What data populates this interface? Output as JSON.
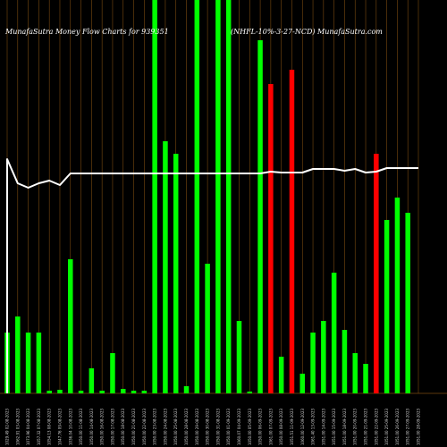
{
  "header": {
    "title_left": "MunafaSutra  Money Flow  Charts for 939351",
    "title_right": "(NHFL-10%-3-27-NCD) MunafaSutra.com"
  },
  "colors": {
    "background": "#000000",
    "grid": "#7a4a10",
    "up": "#00ff00",
    "down": "#ff0000",
    "line": "#ffffff"
  },
  "chart_data": {
    "type": "bar",
    "ylim": [
      0,
      440
    ],
    "line_ylim": [
      0,
      440
    ],
    "grid": true,
    "categories": [
      "1029.49 02-08-2023",
      "1062.91 03-08-2023",
      "1073.96 04-08-2023",
      "1057.32 07-08-2023",
      "1054.13 08-08-2023",
      "1047.76 09-08-2023",
      "1036.04 10-08-2023",
      "1050.00 11-08-2023",
      "1050.00 14-08-2023",
      "1050.00 16-08-2023",
      "1050.00 17-08-2023",
      "1050.00 18-08-2023",
      "1050.00 21-08-2023",
      "1050.00 22-08-2023",
      "1050.00 23-08-2023",
      "1050.00 24-08-2023",
      "1050.00 25-08-2023",
      "1050.00 28-08-2023",
      "1050.00 29-08-2023",
      "1050.00 30-08-2023",
      "1050.00 31-08-2023",
      "1050.00 01-09-2023",
      "1060.07 04-09-2023",
      "1050.00 05-09-2023",
      "1050.00 06-09-2023",
      "1061.00 07-09-2023",
      "1050.00 08-09-2023",
      "1051.51 11-09-2023",
      "1060.00 12-09-2023",
      "1061.40 13-09-2023",
      "1051.00 14-09-2023",
      "1051.00 15-09-2023",
      "1051.00 18-09-2023",
      "1051.00 20-09-2023",
      "1051.00 21-09-2023",
      "1051.00 22-09-2023",
      "1051.00 25-09-2023",
      "1051.00 26-09-2023",
      "1051.00 27-09-2023",
      "1051.00 28-09-2023"
    ],
    "values": [
      68,
      86,
      68,
      68,
      3,
      4,
      150,
      3,
      28,
      3,
      45,
      5,
      3,
      3,
      440,
      282,
      268,
      8,
      440,
      145,
      440,
      440,
      81,
      2,
      395,
      346,
      41,
      362,
      22,
      68,
      81,
      135,
      71,
      45,
      33,
      268,
      194,
      219,
      202,
      0
    ],
    "colors": [
      "green",
      "green",
      "green",
      "green",
      "green",
      "green",
      "green",
      "green",
      "green",
      "green",
      "green",
      "green",
      "green",
      "green",
      "green",
      "green",
      "green",
      "green",
      "green",
      "green",
      "green",
      "green",
      "green",
      "green",
      "green",
      "red",
      "green",
      "red",
      "green",
      "green",
      "green",
      "green",
      "green",
      "green",
      "green",
      "red",
      "green",
      "green",
      "green",
      "green"
    ],
    "line": [
      262,
      235,
      230,
      235,
      238,
      233,
      246,
      246,
      246,
      246,
      246,
      246,
      246,
      246,
      246,
      246,
      246,
      246,
      246,
      246,
      246,
      246,
      246,
      246,
      246,
      248,
      247,
      247,
      247,
      251,
      251,
      251,
      249,
      251,
      247,
      248,
      252,
      252,
      252,
      252
    ]
  }
}
